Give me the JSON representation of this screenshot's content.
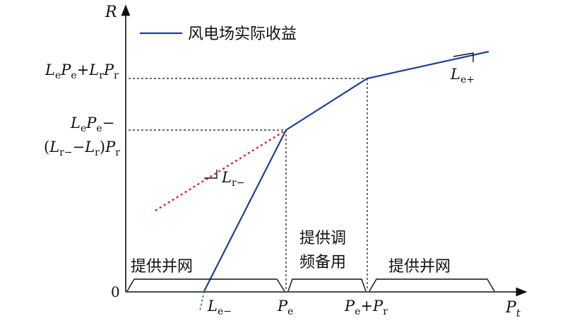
{
  "axes": {
    "y_symbol": "R",
    "x_symbol": "P",
    "x_subscript": "t",
    "origin": "0"
  },
  "legend": {
    "label": "风电场实际收益",
    "line_color": "#1f3e99"
  },
  "y_ticks": {
    "upper": {
      "a": "L",
      "a_sub": "e",
      "b": "P",
      "b_sub": "e",
      "op": "+",
      "c": "L",
      "c_sub": "r",
      "d": "P",
      "d_sub": "r"
    },
    "mid_line1": {
      "a": "L",
      "a_sub": "e",
      "b": "P",
      "b_sub": "e",
      "op": "−"
    },
    "mid_line2": {
      "open": "(",
      "a": "L",
      "a_sub": "r−",
      "op": "−",
      "b": "L",
      "b_sub": "r",
      "close": ")",
      "c": "P",
      "c_sub": "r"
    }
  },
  "x_ticks": {
    "left": {
      "sym": "L",
      "sub": "e−"
    },
    "middle": {
      "sym": "P",
      "sub": "e"
    },
    "right": {
      "a": "P",
      "a_sub": "e",
      "op": "+",
      "b": "P",
      "b_sub": "r"
    }
  },
  "slopes": {
    "upper": {
      "sym": "L",
      "sub": "e+"
    },
    "dotted": {
      "sym": "L",
      "sub": "r−"
    }
  },
  "regions": {
    "left": "提供并网",
    "middle_line1": "提供调",
    "middle_line2": "频备用",
    "right": "提供并网"
  },
  "colors": {
    "revenue_line": "#1f3e99",
    "dotted_extension": "#e0201b",
    "axis": "#111111",
    "guide": "#111111",
    "small_green": "#2e7d32"
  }
}
